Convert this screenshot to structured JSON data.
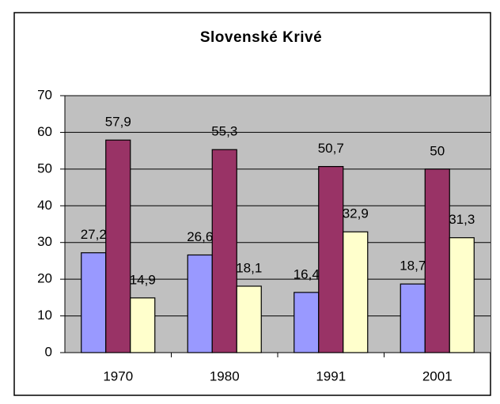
{
  "chart_data": {
    "type": "bar",
    "title": "Slovenské Krivé",
    "categories": [
      "1970",
      "1980",
      "1991",
      "2001"
    ],
    "series": [
      {
        "color": "#9999ff",
        "values": [
          27.2,
          26.6,
          16.4,
          18.7
        ],
        "value_labels": [
          "27,2",
          "26,6",
          "16,4",
          "18,7"
        ]
      },
      {
        "color": "#993366",
        "values": [
          57.9,
          55.3,
          50.7,
          50
        ],
        "value_labels": [
          "57,9",
          "55,3",
          "50,7",
          "50"
        ]
      },
      {
        "color": "#ffffcc",
        "values": [
          14.9,
          18.1,
          32.9,
          31.3
        ],
        "value_labels": [
          "14,9",
          "18,1",
          "32,9",
          "31,3"
        ]
      }
    ],
    "ylim": [
      0,
      70
    ],
    "yticks": [
      0,
      10,
      20,
      30,
      40,
      50,
      60,
      70
    ],
    "grid": true,
    "plot_background": "#c0c0c0"
  }
}
